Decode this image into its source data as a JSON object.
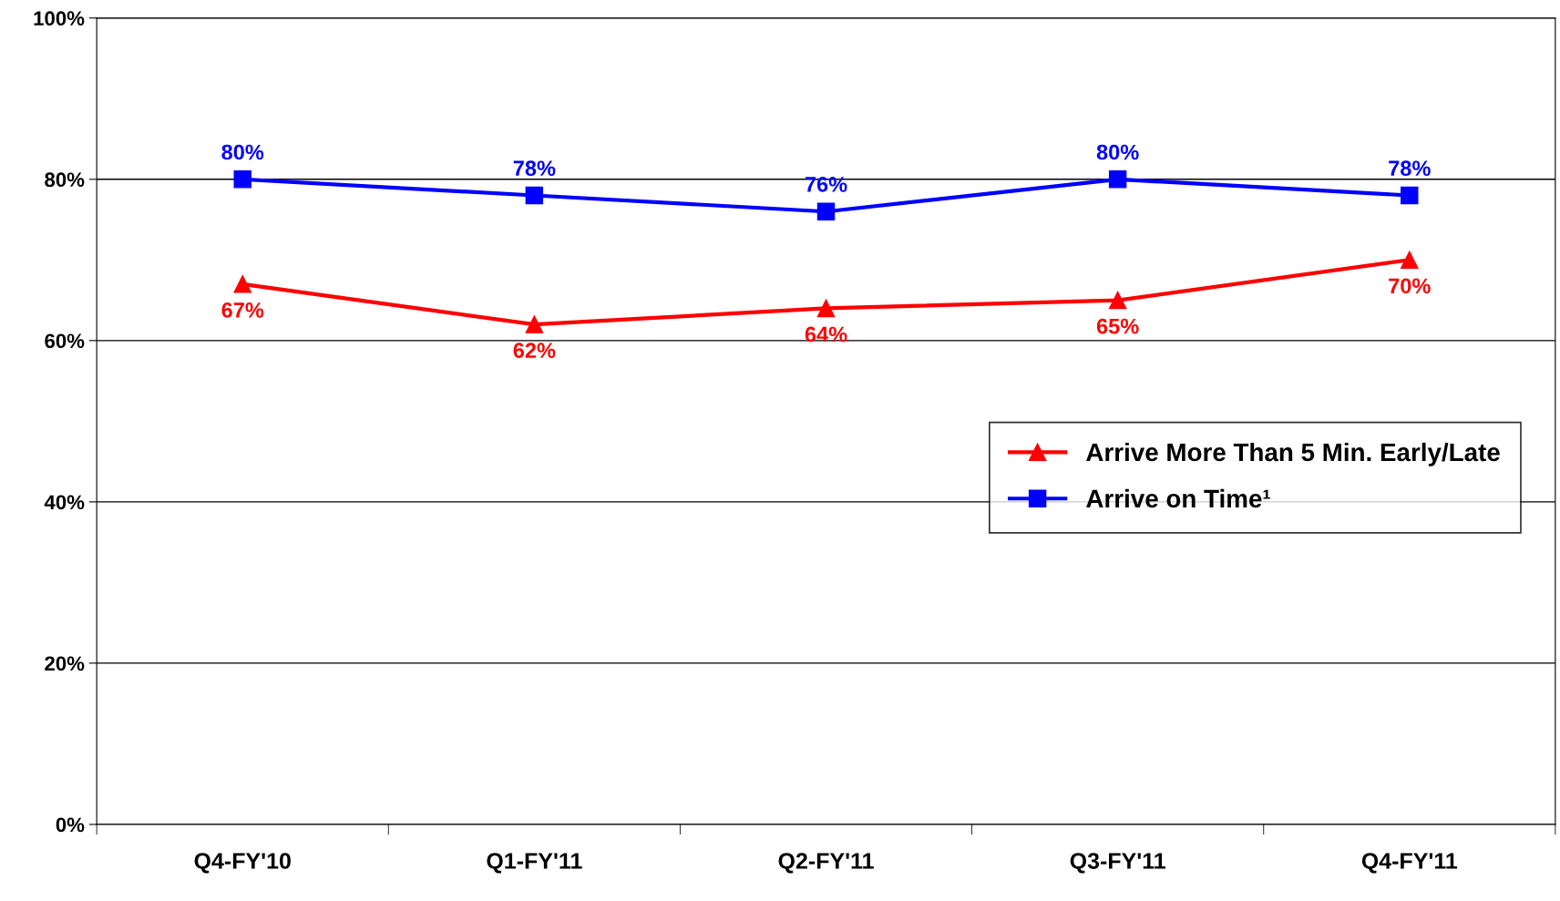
{
  "chart_data": {
    "type": "line",
    "categories": [
      "Q4-FY'10",
      "Q1-FY'11",
      "Q2-FY'11",
      "Q3-FY'11",
      "Q4-FY'11"
    ],
    "series": [
      {
        "name": "Arrive More Than 5 Min. Early/Late",
        "color": "#ff0000",
        "marker": "triangle",
        "values": [
          67,
          62,
          64,
          65,
          70
        ],
        "value_labels": [
          "67%",
          "62%",
          "64%",
          "65%",
          "70%"
        ]
      },
      {
        "name": "Arrive on Time¹",
        "color": "#0000ff",
        "marker": "square",
        "values": [
          80,
          78,
          76,
          80,
          78
        ],
        "value_labels": [
          "80%",
          "78%",
          "76%",
          "80%",
          "78%"
        ]
      }
    ],
    "ylim": [
      0,
      100
    ],
    "yticks": [
      {
        "value": 0,
        "label": "0%"
      },
      {
        "value": 20,
        "label": "20%"
      },
      {
        "value": 40,
        "label": "40%"
      },
      {
        "value": 60,
        "label": "60%"
      },
      {
        "value": 80,
        "label": "80%"
      },
      {
        "value": 100,
        "label": "100%"
      }
    ],
    "grid": "y",
    "legend": "center right",
    "line_style": "solid"
  }
}
